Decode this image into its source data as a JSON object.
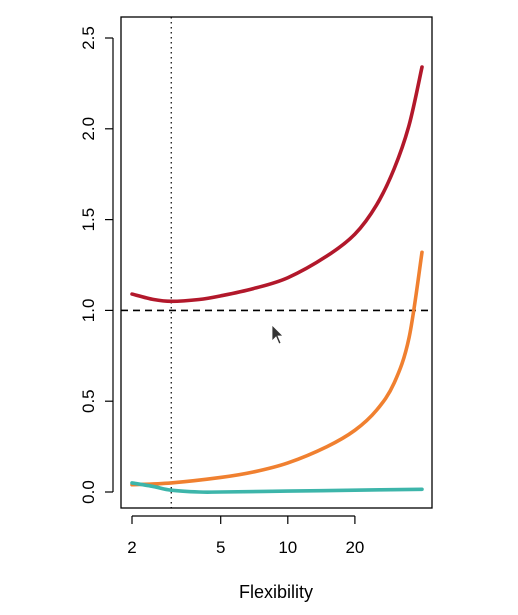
{
  "chart_data": {
    "type": "line",
    "title": "",
    "xlabel": "Flexibility",
    "ylabel": "",
    "xscale": "log",
    "xlim": [
      2,
      40
    ],
    "ylim": [
      0,
      2.5
    ],
    "x_ticks": [
      2,
      5,
      10,
      20
    ],
    "x_tick_labels": [
      "2",
      "5",
      "10",
      "20"
    ],
    "y_ticks": [
      0,
      0.5,
      1,
      1.5,
      2,
      2.5
    ],
    "y_tick_labels": [
      "0.0",
      "0.5",
      "1.0",
      "1.5",
      "2.0",
      "2.5"
    ],
    "grid": false,
    "legend": "none",
    "series": [
      {
        "color": "#B2182B",
        "x": [
          2,
          2.5,
          3,
          4,
          5,
          7,
          10,
          15,
          20,
          25,
          30,
          35,
          40
        ],
        "values": [
          1.09,
          1.06,
          1.05,
          1.06,
          1.08,
          1.12,
          1.18,
          1.3,
          1.42,
          1.58,
          1.78,
          2.02,
          2.34
        ]
      },
      {
        "color": "#F08030",
        "x": [
          2,
          3,
          5,
          7,
          10,
          15,
          20,
          25,
          30,
          35,
          40
        ],
        "values": [
          0.04,
          0.05,
          0.08,
          0.11,
          0.16,
          0.25,
          0.34,
          0.45,
          0.6,
          0.85,
          1.32
        ]
      },
      {
        "color": "#3DB5AA",
        "x": [
          2,
          2.5,
          3,
          4,
          5,
          10,
          20,
          40
        ],
        "values": [
          0.05,
          0.03,
          0.01,
          0.0,
          0.0,
          0.005,
          0.01,
          0.015
        ]
      }
    ],
    "reference_lines": [
      {
        "orientation": "horizontal",
        "value": 1.0,
        "style": "dashed"
      },
      {
        "orientation": "vertical",
        "value": 3,
        "style": "dotted"
      }
    ]
  }
}
